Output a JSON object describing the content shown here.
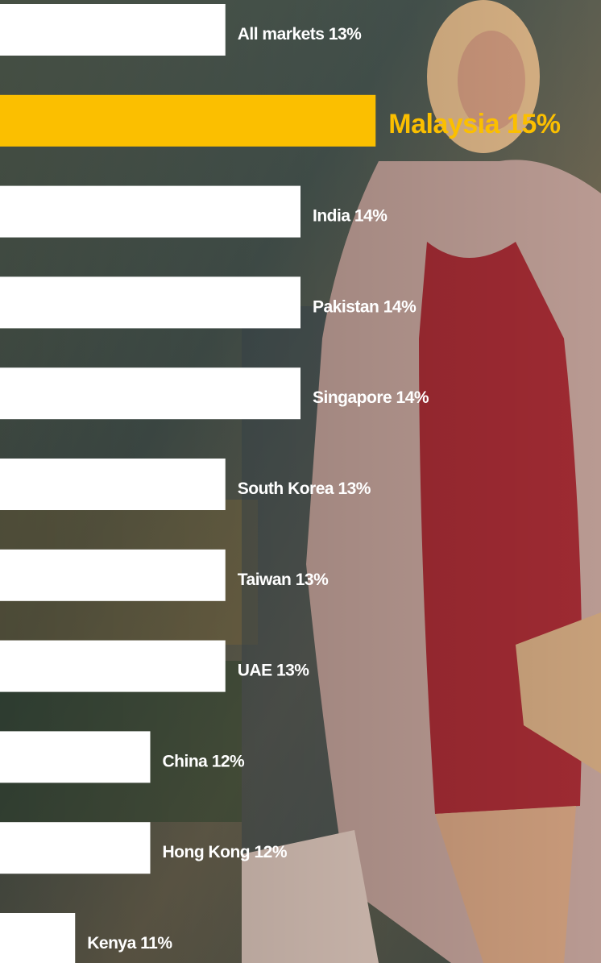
{
  "chart_data": {
    "type": "bar",
    "orientation": "horizontal",
    "categories": [
      "All markets",
      "Malaysia",
      "India",
      "Pakistan",
      "Singapore",
      "South Korea",
      "Taiwan",
      "UAE",
      "China",
      "Hong Kong",
      "Kenya"
    ],
    "values": [
      13,
      15,
      14,
      14,
      14,
      13,
      13,
      13,
      12,
      12,
      11
    ],
    "value_labels": [
      "13%",
      "15%",
      "14%",
      "14%",
      "14%",
      "13%",
      "13%",
      "13%",
      "12%",
      "12%",
      "11%"
    ],
    "colors": [
      "#ffffff",
      "#fbbf00",
      "#ffffff",
      "#ffffff",
      "#ffffff",
      "#ffffff",
      "#ffffff",
      "#ffffff",
      "#ffffff",
      "#ffffff",
      "#ffffff"
    ],
    "xlim": [
      10,
      18
    ]
  }
}
